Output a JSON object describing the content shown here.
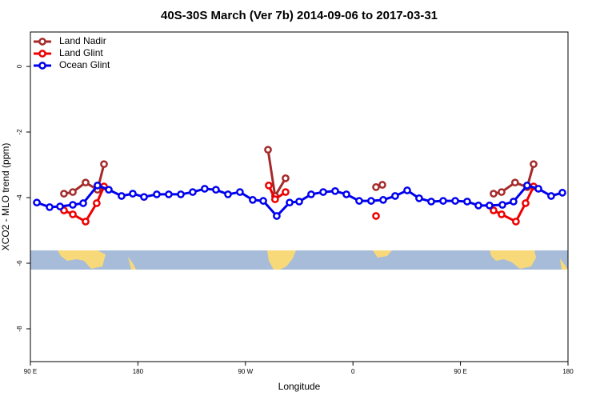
{
  "chart_data": {
    "type": "line",
    "title": "40S-30S March (Ver 7b)   2014-09-06 to 2017-03-31",
    "x_label": "Longitude",
    "y_label": "XCO2 - MLO trend (ppm)",
    "xlim": [
      90,
      540
    ],
    "ylim": [
      -9,
      1.05
    ],
    "xticks": [
      {
        "value": 90,
        "label": "90 E"
      },
      180,
      {
        "value": 270,
        "label": "90 W"
      },
      {
        "value": 360,
        "label": "0"
      },
      {
        "value": 450,
        "label": "90 E"
      },
      {
        "value": 540,
        "label": "180"
      }
    ],
    "yticks": [
      0,
      -2,
      -4,
      -6,
      -8
    ],
    "legend": "top-left",
    "series": [
      {
        "name": "Land Nadir",
        "color": "#a52a2a",
        "x": [
          118.1,
          125.5,
          136.2,
          146.2,
          151.6,
          null,
          288.9,
          294.8,
          303.6,
          null,
          379.3,
          384.6,
          null,
          477.7,
          484.4,
          495.7,
          505.8,
          511.2
        ],
        "values": [
          -3.88,
          -3.83,
          -3.54,
          -3.76,
          -2.98,
          null,
          -2.54,
          -3.95,
          -3.41,
          null,
          -3.68,
          -3.61,
          null,
          -3.88,
          -3.83,
          -3.54,
          -3.68,
          -2.98
        ]
      },
      {
        "name": "Land Glint",
        "color": "#ee0000",
        "x": [
          118.1,
          125.5,
          136.2,
          145.5,
          151.6,
          null,
          289.5,
          294.8,
          303.6,
          null,
          379.3,
          null,
          477.7,
          484.4,
          496.4,
          504.5,
          511.2
        ],
        "values": [
          -4.39,
          -4.51,
          -4.73,
          -4.17,
          -3.66,
          null,
          -3.63,
          -4.05,
          -3.83,
          null,
          -4.56,
          null,
          -4.39,
          -4.51,
          -4.73,
          -4.17,
          -3.66
        ]
      },
      {
        "name": "Ocean Glint",
        "color": "#0000ee",
        "x": [
          95.4,
          106.1,
          114.8,
          125.5,
          134.2,
          146.2,
          155.6,
          166.3,
          175.7,
          185.1,
          195.8,
          205.8,
          215.9,
          225.9,
          235.9,
          245.3,
          255.4,
          265.4,
          276.1,
          284.9,
          296.2,
          307.0,
          315.0,
          325.0,
          335.1,
          345.1,
          354.5,
          365.2,
          375.2,
          385.3,
          395.3,
          405.4,
          415.4,
          425.5,
          435.5,
          445.6,
          455.6,
          465.0,
          474.3,
          485.1,
          494.4,
          505.8,
          515.2,
          525.9,
          535.3
        ],
        "values": [
          -4.15,
          -4.29,
          -4.27,
          -4.22,
          -4.17,
          -3.63,
          -3.76,
          -3.95,
          -3.88,
          -3.98,
          -3.9,
          -3.9,
          -3.9,
          -3.83,
          -3.73,
          -3.76,
          -3.9,
          -3.83,
          -4.07,
          -4.1,
          -4.56,
          -4.15,
          -4.12,
          -3.9,
          -3.83,
          -3.8,
          -3.9,
          -4.1,
          -4.1,
          -4.07,
          -3.95,
          -3.78,
          -4.02,
          -4.12,
          -4.1,
          -4.1,
          -4.12,
          -4.24,
          -4.24,
          -4.22,
          -4.12,
          -3.63,
          -3.73,
          -3.95,
          -3.85
        ]
      }
    ]
  }
}
